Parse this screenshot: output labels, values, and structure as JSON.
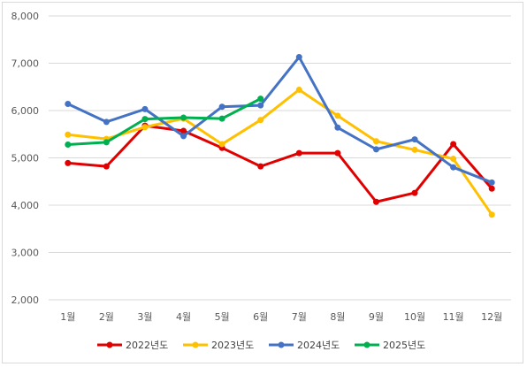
{
  "chart_data": {
    "type": "line",
    "categories": [
      "1월",
      "2월",
      "3월",
      "4월",
      "5월",
      "6월",
      "7월",
      "8월",
      "9월",
      "10월",
      "11월",
      "12월"
    ],
    "y_ticks": [
      "2,000",
      "3,000",
      "4,000",
      "5,000",
      "6,000",
      "7,000",
      "8,000"
    ],
    "y_tick_values": [
      2000,
      3000,
      4000,
      5000,
      6000,
      7000,
      8000
    ],
    "ylim": [
      2000,
      8000
    ],
    "grid": true,
    "legend_position": "bottom",
    "series": [
      {
        "name": "2022년도",
        "color": "#e00000",
        "values": [
          4890,
          4820,
          5680,
          5570,
          5210,
          4820,
          5100,
          5100,
          4070,
          4260,
          5290,
          4350
        ]
      },
      {
        "name": "2023년도",
        "color": "#ffc000",
        "values": [
          5490,
          5400,
          5650,
          5830,
          5290,
          5800,
          6440,
          5890,
          5350,
          5170,
          4980,
          3800
        ]
      },
      {
        "name": "2024년도",
        "color": "#4472c4",
        "values": [
          6140,
          5760,
          6030,
          5460,
          6080,
          6110,
          7130,
          5640,
          5180,
          5390,
          4800,
          4480
        ]
      },
      {
        "name": "2025년도",
        "color": "#00b050",
        "values": [
          5280,
          5330,
          5820,
          5850,
          5830,
          6250,
          null,
          null,
          null,
          null,
          null,
          null
        ]
      }
    ]
  }
}
